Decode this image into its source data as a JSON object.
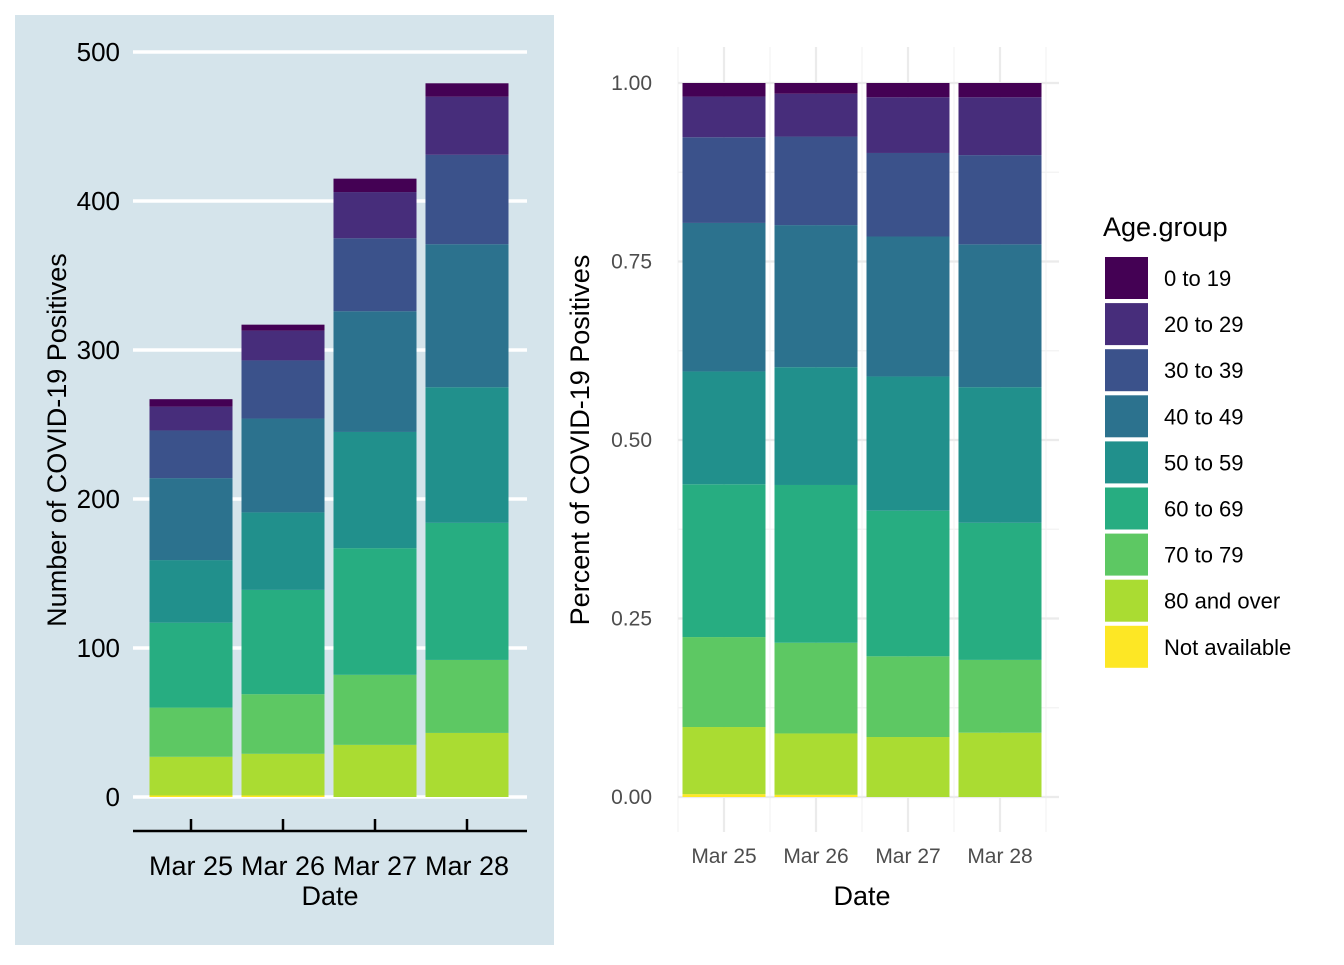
{
  "legend": {
    "title": "Age.group",
    "placement": "right",
    "colors": [
      "#440154",
      "#472D7B",
      "#3B528B",
      "#2C728E",
      "#21908C",
      "#27AD81",
      "#5DC863",
      "#AADC32",
      "#FDE725"
    ]
  },
  "chart_data": [
    {
      "type": "bar",
      "stacked": true,
      "theme_background": "#D5E4EB",
      "categories": [
        "Mar 25",
        "Mar 26",
        "Mar 27",
        "Mar 28"
      ],
      "xlabel": "Date",
      "ylabel": "Number of COVID-19 Positives",
      "ylim": [
        0,
        500
      ],
      "yticks": [
        "0",
        "100",
        "200",
        "300",
        "400",
        "500"
      ],
      "grid": "horizontal",
      "series": [
        {
          "name": "Not available",
          "values": [
            1,
            1,
            0,
            0
          ]
        },
        {
          "name": "80 and over",
          "values": [
            26,
            28,
            35,
            43
          ]
        },
        {
          "name": "70 to 79",
          "values": [
            33,
            40,
            47,
            49
          ]
        },
        {
          "name": "60 to 69",
          "values": [
            57,
            70,
            85,
            92
          ]
        },
        {
          "name": "50 to 59",
          "values": [
            42,
            52,
            78,
            91
          ]
        },
        {
          "name": "40 to 49",
          "values": [
            55,
            63,
            81,
            96
          ]
        },
        {
          "name": "30 to 39",
          "values": [
            32,
            39,
            49,
            60
          ]
        },
        {
          "name": "20 to 29",
          "values": [
            16,
            20,
            31,
            39
          ]
        },
        {
          "name": "0 to 19",
          "values": [
            5,
            4,
            9,
            9
          ]
        }
      ]
    },
    {
      "type": "bar",
      "stacked": true,
      "normalized": true,
      "theme_background": "#FFFFFF",
      "categories": [
        "Mar 25",
        "Mar 26",
        "Mar 27",
        "Mar 28"
      ],
      "xlabel": "Date",
      "ylabel": "Percent of COVID-19 Positives",
      "ylim": [
        0,
        1
      ],
      "yticks": [
        "0.00",
        "0.25",
        "0.50",
        "0.75",
        "1.00"
      ],
      "grid": "both",
      "series": [
        {
          "name": "Not available",
          "values": [
            0.004,
            0.003,
            0.0,
            0.0
          ]
        },
        {
          "name": "80 and over",
          "values": [
            0.094,
            0.086,
            0.084,
            0.09
          ]
        },
        {
          "name": "70 to 79",
          "values": [
            0.126,
            0.127,
            0.113,
            0.102
          ]
        },
        {
          "name": "60 to 69",
          "values": [
            0.214,
            0.221,
            0.204,
            0.192
          ]
        },
        {
          "name": "50 to 59",
          "values": [
            0.158,
            0.165,
            0.188,
            0.19
          ]
        },
        {
          "name": "40 to 49",
          "values": [
            0.208,
            0.199,
            0.196,
            0.2
          ]
        },
        {
          "name": "30 to 39",
          "values": [
            0.12,
            0.124,
            0.117,
            0.125
          ]
        },
        {
          "name": "20 to 29",
          "values": [
            0.057,
            0.06,
            0.078,
            0.081
          ]
        },
        {
          "name": "0 to 19",
          "values": [
            0.019,
            0.015,
            0.02,
            0.02
          ]
        }
      ]
    }
  ]
}
